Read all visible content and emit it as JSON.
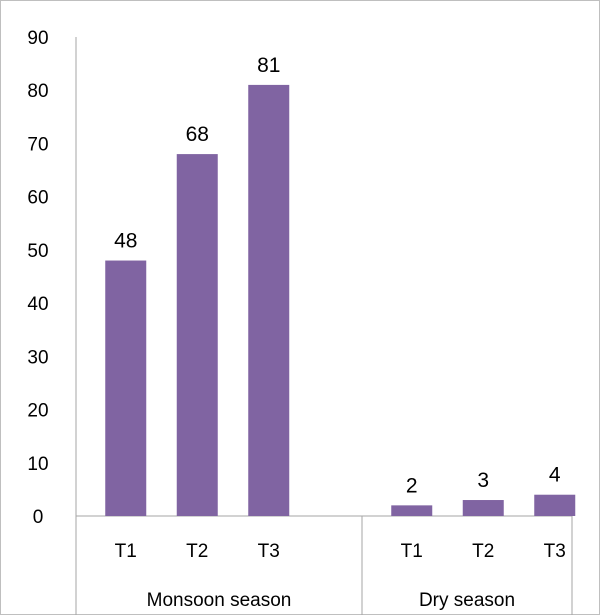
{
  "chart_data": {
    "type": "bar",
    "title": "",
    "xlabel": "",
    "ylabel": "",
    "ylim": [
      0,
      90
    ],
    "yticks": [
      0,
      10,
      20,
      30,
      40,
      50,
      60,
      70,
      80,
      90
    ],
    "grid": false,
    "bar_color": "#8064a2",
    "groups": [
      {
        "label": "Monsoon season",
        "categories": [
          "T1",
          "T2",
          "T3"
        ],
        "values": [
          48,
          68,
          81
        ]
      },
      {
        "label": "Dry season",
        "categories": [
          "T1",
          "T2",
          "T3"
        ],
        "values": [
          2,
          3,
          4
        ]
      }
    ]
  }
}
